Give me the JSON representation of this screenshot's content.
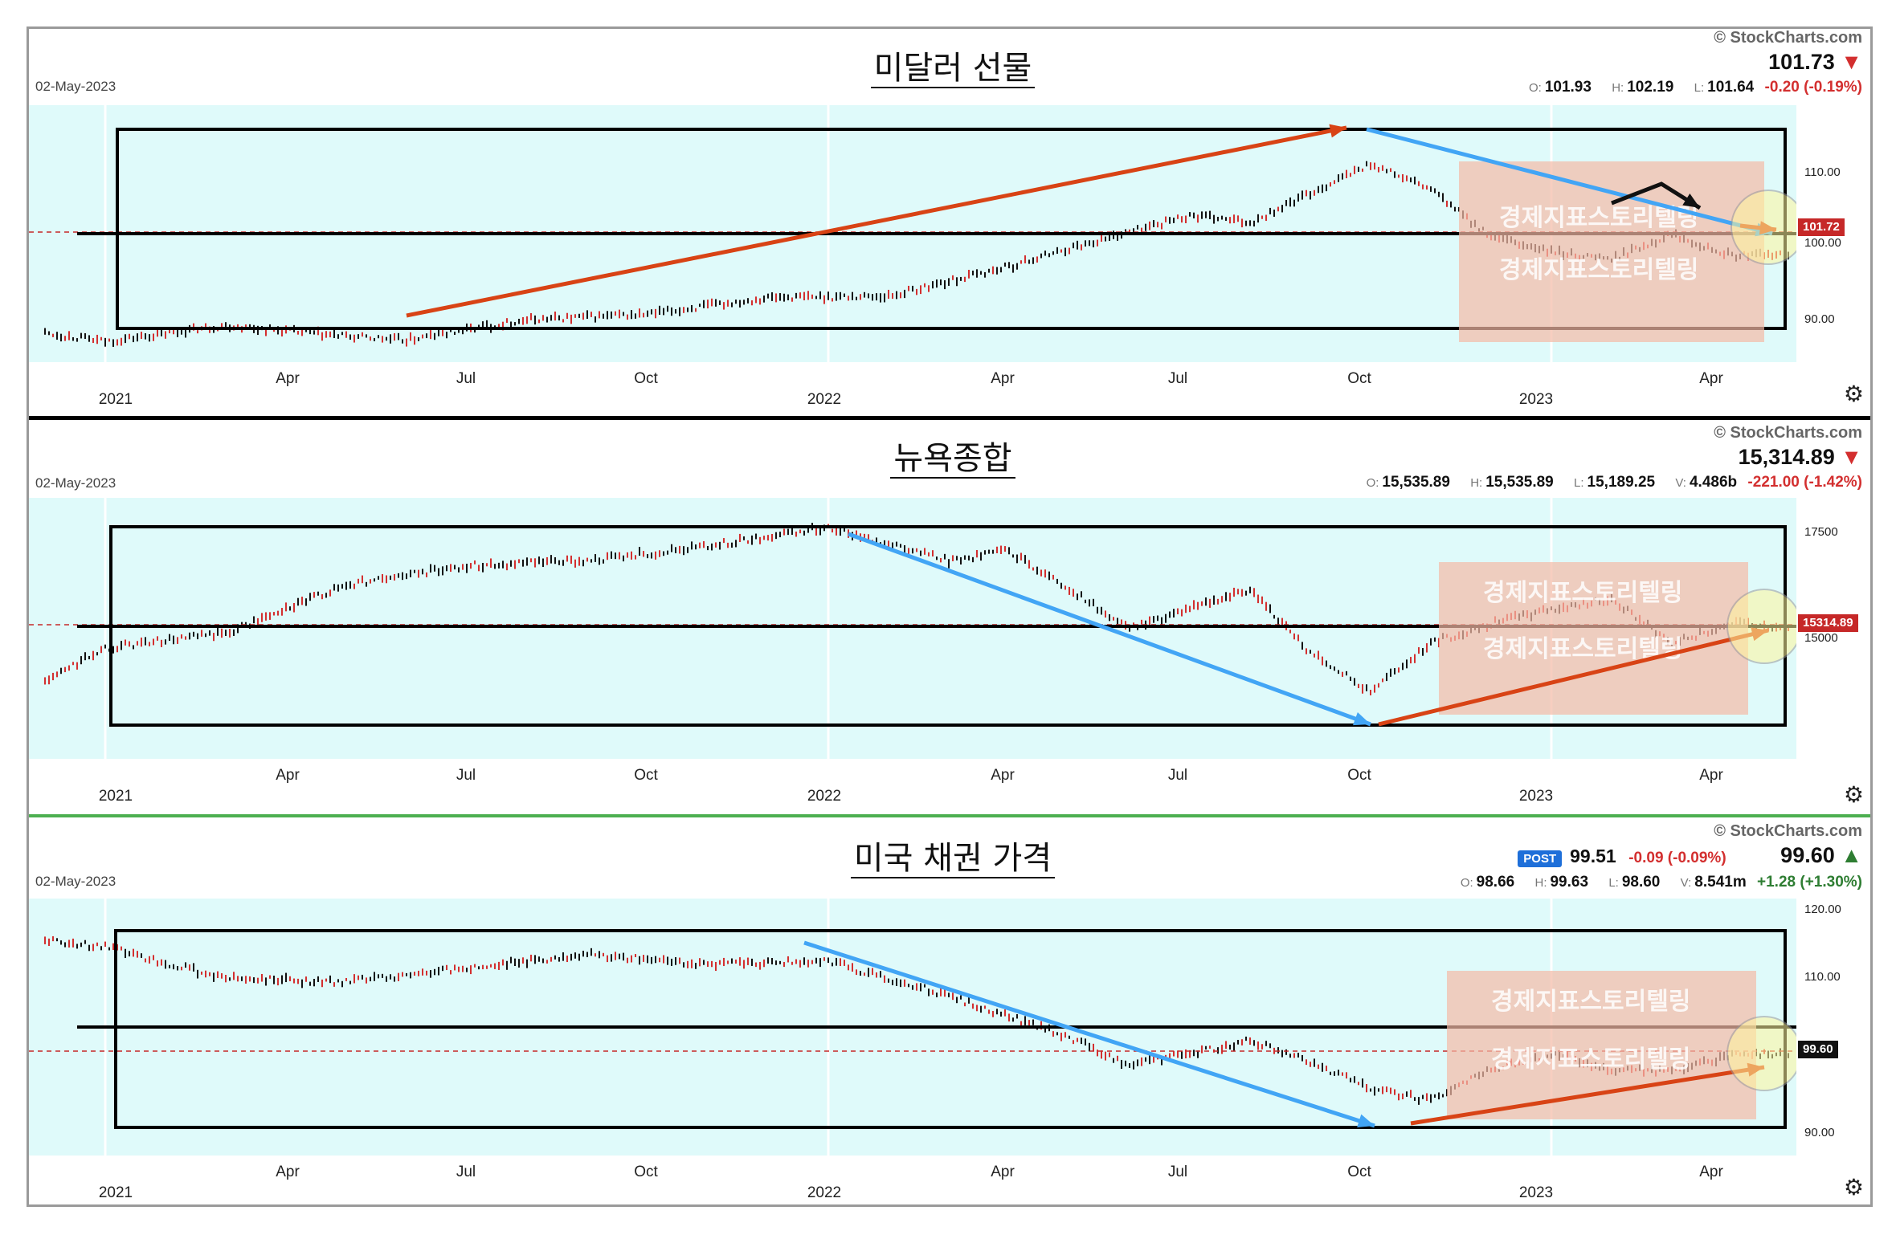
{
  "watermark": "경제지표스토리텔링",
  "icons": {
    "gear": "gear-icon",
    "down": "triangle-down-icon",
    "up": "triangle-up-icon"
  },
  "colors": {
    "plot_bg": "#dffafa",
    "up_bar": "#111111",
    "down_bar": "#d32f2f",
    "arrow_red": "#d84315",
    "arrow_blue": "#42a5f5",
    "box": "#000000"
  },
  "panels": [
    {
      "title": "미달러 선물",
      "brand": "© StockCharts.com",
      "date": "02-May-2023",
      "price": "101.73",
      "direction": "down",
      "ohlc": {
        "o": "101.93",
        "h": "102.19",
        "l": "101.64",
        "v": "",
        "change": "-0.20 (-0.19%)"
      },
      "post": null,
      "last_tag": "101.72",
      "x_labels": [
        "2021",
        "Apr",
        "Jul",
        "Oct",
        "2022",
        "Apr",
        "Jul",
        "Oct",
        "2023",
        "Apr"
      ],
      "y_labels": [
        "110.00",
        "100.00",
        "90.00"
      ]
    },
    {
      "title": "뉴욕종합",
      "brand": "© StockCharts.com",
      "date": "02-May-2023",
      "price": "15,314.89",
      "direction": "down",
      "ohlc": {
        "o": "15,535.89",
        "h": "15,535.89",
        "l": "15,189.25",
        "v": "4.486b",
        "change": "-221.00 (-1.42%)"
      },
      "post": null,
      "last_tag": "15314.89",
      "x_labels": [
        "2021",
        "Apr",
        "Jul",
        "Oct",
        "2022",
        "Apr",
        "Jul",
        "Oct",
        "2023",
        "Apr"
      ],
      "y_labels": [
        "17500",
        "15000"
      ]
    },
    {
      "title": "미국 채권 가격",
      "brand": "© StockCharts.com",
      "date": "02-May-2023",
      "price": "99.60",
      "direction": "up",
      "ohlc": {
        "o": "98.66",
        "h": "99.63",
        "l": "98.60",
        "v": "8.541m",
        "change": "+1.28 (+1.30%)"
      },
      "post": {
        "label": "POST",
        "price": "99.51",
        "change": "-0.09 (-0.09%)"
      },
      "last_tag": "99.60",
      "x_labels": [
        "2021",
        "Apr",
        "Jul",
        "Oct",
        "2022",
        "Apr",
        "Jul",
        "Oct",
        "2023",
        "Apr"
      ],
      "y_labels": [
        "120.00",
        "110.00",
        "90.00"
      ]
    }
  ],
  "chart_data": [
    {
      "type": "line",
      "title": "미달러 선물",
      "x": [
        "2020-12",
        "2021-01",
        "2021-03",
        "2021-05",
        "2021-06",
        "2021-08",
        "2021-10",
        "2021-12",
        "2022-02",
        "2022-04",
        "2022-05",
        "2022-07",
        "2022-08",
        "2022-09",
        "2022-10",
        "2022-11",
        "2022-12",
        "2023-01",
        "2023-02",
        "2023-03",
        "2023-04",
        "2023-05"
      ],
      "series": [
        {
          "values": [
            91.0,
            89.8,
            92.0,
            90.5,
            90.0,
            92.8,
            93.5,
            95.8,
            96.0,
            100.0,
            102.5,
            107.0,
            106.0,
            110.0,
            114.0,
            110.5,
            104.0,
            102.0,
            101.0,
            104.5,
            101.5,
            101.7
          ]
        }
      ],
      "ylim": [
        87,
        122
      ],
      "grid": false
    },
    {
      "type": "line",
      "title": "뉴욕종합",
      "x": [
        "2020-12",
        "2021-01",
        "2021-03",
        "2021-05",
        "2021-07",
        "2021-09",
        "2021-11",
        "2022-01",
        "2022-03",
        "2022-04",
        "2022-06",
        "2022-08",
        "2022-09",
        "2022-10",
        "2022-11",
        "2022-12",
        "2023-01",
        "2023-02",
        "2023-03",
        "2023-04",
        "2023-05"
      ],
      "series": [
        {
          "values": [
            14200,
            14900,
            15200,
            16200,
            16600,
            16700,
            17000,
            17400,
            16700,
            16900,
            15300,
            16100,
            14800,
            14000,
            15000,
            15400,
            15700,
            15900,
            15000,
            15400,
            15300
          ]
        }
      ],
      "ylim": [
        12600,
        18000
      ],
      "grid": false
    },
    {
      "type": "line",
      "title": "미국 채권 가격",
      "x": [
        "2020-12",
        "2021-01",
        "2021-03",
        "2021-05",
        "2021-07",
        "2021-09",
        "2021-11",
        "2022-01",
        "2022-03",
        "2022-05",
        "2022-06",
        "2022-08",
        "2022-09",
        "2022-10",
        "2022-11",
        "2022-12",
        "2023-01",
        "2023-02",
        "2023-03",
        "2023-04",
        "2023-05"
      ],
      "series": [
        {
          "values": [
            116.0,
            115.0,
            110.5,
            110.0,
            112.0,
            114.0,
            112.5,
            113.0,
            108.0,
            102.0,
            98.0,
            101.5,
            98.5,
            94.5,
            93.0,
            97.5,
            99.5,
            97.5,
            97.0,
            99.5,
            99.6
          ]
        }
      ],
      "ylim": [
        85,
        122
      ],
      "grid": false
    }
  ]
}
